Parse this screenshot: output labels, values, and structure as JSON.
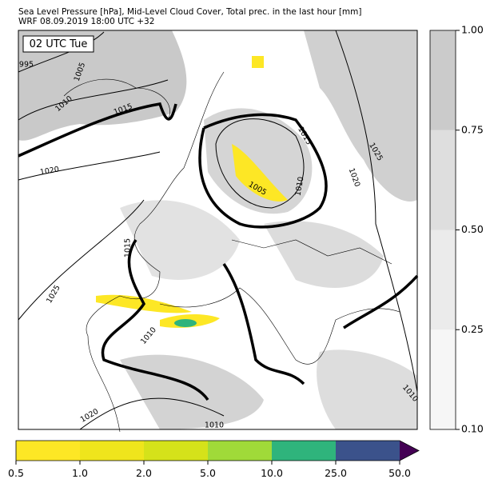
{
  "header": {
    "line1": "Sea Level Pressure [hPa], Mid-Level Cloud Cover, Total prec. in the last hour [mm]",
    "line2": "WRF 08.09.2019 18:00 UTC +32"
  },
  "map": {
    "time_label": "02 UTC Tue",
    "isobar_labels": [
      995,
      1005,
      1010,
      1015,
      1020,
      1015,
      1025,
      1020,
      1005,
      1010,
      1015,
      1025,
      1010,
      1010,
      1020,
      1010
    ]
  },
  "cloud_colorbar": {
    "levels": [
      {
        "value": 0.1,
        "label": "0.10"
      },
      {
        "value": 0.25,
        "label": "0.25"
      },
      {
        "value": 0.5,
        "label": "0.50"
      },
      {
        "value": 0.75,
        "label": "0.75"
      },
      {
        "value": 1,
        "label": "1.00"
      }
    ],
    "colors": [
      "#f6f6f6",
      "#ebebeb",
      "#dedede",
      "#cbcbcb"
    ]
  },
  "precip_colorbar": {
    "levels": [
      {
        "value": 0.5,
        "label": "0.5"
      },
      {
        "value": 1,
        "label": "1.0"
      },
      {
        "value": 2,
        "label": "2.0"
      },
      {
        "value": 5,
        "label": "5.0"
      },
      {
        "value": 10,
        "label": "10.0"
      },
      {
        "value": 25,
        "label": "25.0"
      },
      {
        "value": 50,
        "label": "50.0"
      }
    ],
    "colors": [
      "#fde725",
      "#efe51c",
      "#d5e21a",
      "#a0da39",
      "#2fb47c",
      "#3b528b"
    ],
    "extend_color": "#440154"
  }
}
